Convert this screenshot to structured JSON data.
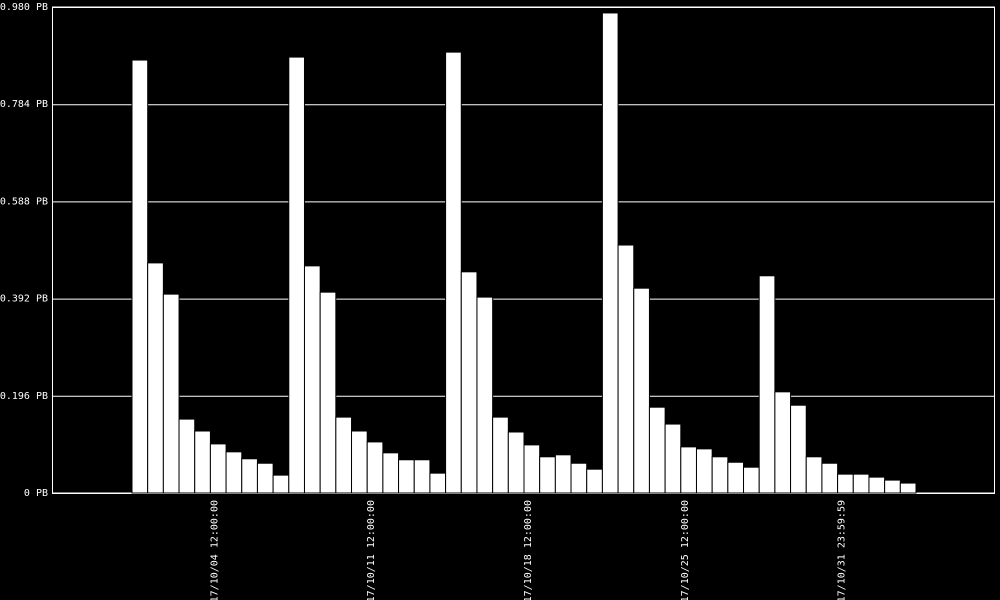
{
  "chart_data": {
    "type": "bar",
    "color": "#ffffff",
    "grid": true,
    "categories": [
      null,
      null,
      null,
      null,
      null,
      "17/10/04 12:00:00",
      null,
      null,
      null,
      null,
      null,
      null,
      null,
      null,
      null,
      "17/10/11 12:00:00",
      null,
      null,
      null,
      null,
      null,
      null,
      null,
      null,
      null,
      "17/10/18 12:00:00",
      null,
      null,
      null,
      null,
      null,
      null,
      null,
      null,
      null,
      "17/10/25 12:00:00",
      null,
      null,
      null,
      null,
      null,
      null,
      null,
      null,
      null,
      "17/10/31 23:59:59",
      null,
      null,
      null,
      null
    ],
    "values": [
      0.873,
      0.464,
      0.401,
      0.149,
      0.125,
      0.099,
      0.083,
      0.069,
      0.06,
      0.036,
      0.879,
      0.458,
      0.405,
      0.153,
      0.125,
      0.103,
      0.081,
      0.067,
      0.067,
      0.04,
      0.889,
      0.446,
      0.395,
      0.153,
      0.123,
      0.097,
      0.073,
      0.077,
      0.06,
      0.048,
      0.968,
      0.5,
      0.413,
      0.173,
      0.139,
      0.093,
      0.089,
      0.073,
      0.062,
      0.052,
      0.438,
      0.204,
      0.177,
      0.073,
      0.06,
      0.038,
      0.038,
      0.032,
      0.026,
      0.02
    ],
    "ylim": [
      0,
      0.98
    ],
    "yticks": [
      {
        "value": 0,
        "label": "0 PB"
      },
      {
        "value": 0.196,
        "label": "0.196 PB"
      },
      {
        "value": 0.392,
        "label": "0.392 PB"
      },
      {
        "value": 0.588,
        "label": "0.588 PB"
      },
      {
        "value": 0.784,
        "label": "0.784 PB"
      },
      {
        "value": 0.98,
        "label": "0.980 PB"
      }
    ]
  }
}
